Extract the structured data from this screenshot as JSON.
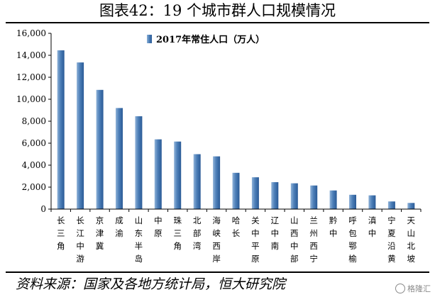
{
  "title": "图表42：19 个城市群人口规模情况",
  "source": "资料来源：国家及各地方统计局，恒大研究院",
  "watermark": "格隆汇",
  "colors": {
    "bar_light": "#8fb2d8",
    "bar_mid": "#4d7fb8",
    "bar_dark": "#2a5a96",
    "axis": "#000000"
  },
  "chart_data": {
    "type": "bar",
    "legend": "2017年常住人口（万人）",
    "legend_position": "top",
    "ylim": [
      0,
      16000
    ],
    "yticks": [
      0,
      2000,
      4000,
      6000,
      8000,
      10000,
      12000,
      14000,
      16000
    ],
    "ytick_labels": [
      "0",
      "2,000",
      "4,000",
      "6,000",
      "8,000",
      "10,000",
      "12,000",
      "14,000",
      "16,000"
    ],
    "grid": false,
    "categories": [
      "长三角",
      "长江中游",
      "京津冀",
      "成渝",
      "山东半岛",
      "中原",
      "珠三角",
      "北部湾",
      "海峡西岸",
      "哈长",
      "关中平原",
      "辽中南",
      "山西中部",
      "兰州西宁",
      "黔中",
      "呼包鄂榆",
      "滇中",
      "宁夏沿黄",
      "天山北坡"
    ],
    "values": [
      14450,
      13350,
      10850,
      9200,
      8450,
      6350,
      6150,
      5000,
      4800,
      3300,
      2900,
      2450,
      2350,
      2150,
      1700,
      1300,
      1250,
      700,
      560
    ]
  }
}
